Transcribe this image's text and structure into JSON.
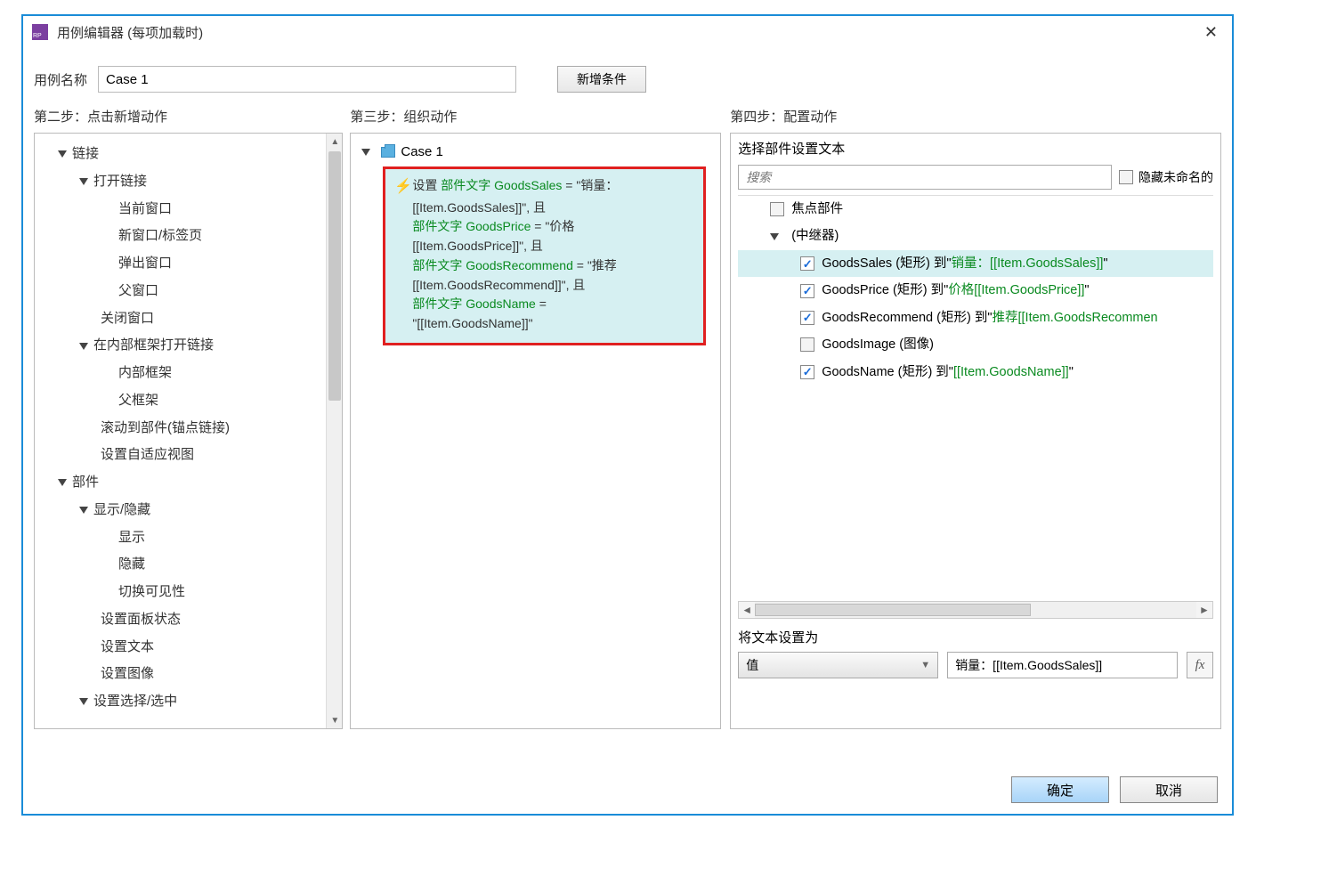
{
  "window": {
    "title": "用例编辑器 (每项加载时)"
  },
  "caseName": {
    "label": "用例名称",
    "value": "Case 1"
  },
  "newCondition": "新增条件",
  "steps": {
    "s2": "第二步：点击新增动作",
    "s3": "第三步：组织动作",
    "s4": "第四步：配置动作"
  },
  "actionTree": {
    "links": "链接",
    "openLink": "打开链接",
    "currentWindow": "当前窗口",
    "newWindowTab": "新窗口/标签页",
    "popupWindow": "弹出窗口",
    "parentWindow": "父窗口",
    "closeWindow": "关闭窗口",
    "openInFrame": "在内部框架打开链接",
    "innerFrame": "内部框架",
    "parentFrame": "父框架",
    "scrollToWidget": "滚动到部件(锚点链接)",
    "setAdaptive": "设置自适应视图",
    "widgets": "部件",
    "showHide": "显示/隐藏",
    "show": "显示",
    "hide": "隐藏",
    "toggleVis": "切换可见性",
    "setPanelState": "设置面板状态",
    "setText": "设置文本",
    "setImage": "设置图像",
    "setSelected": "设置选择/选中"
  },
  "case": {
    "name": "Case 1",
    "action": {
      "prefix": "设置 ",
      "g1a": "部件文字 GoodsSales",
      "g1b": " = \"销量：",
      "g1c": "[[Item.GoodsSales]]\"",
      "g1d": ", 且",
      "g2a": " 部件文字 GoodsPrice",
      "g2b": " = \"价格",
      "g2c": "[[Item.GoodsPrice]]\"",
      "g2d": ", 且",
      "g3a": " 部件文字 GoodsRecommend",
      "g3b": " = \"推荐",
      "g3c": "[[Item.GoodsRecommend]]\"",
      "g3d": ", 且",
      "g4a": " 部件文字 GoodsName",
      "g4b": " =",
      "g4c": "\"[[Item.GoodsName]]\""
    }
  },
  "config": {
    "title": "选择部件设置文本",
    "searchPlaceholder": "搜索",
    "hideUnnamed": "隐藏未命名的",
    "focusWidget": "焦点部件",
    "repeater": "(中继器)",
    "rows": {
      "r1a": "GoodsSales (矩形) 到\"",
      "r1b": "销量：[[Item.GoodsSales]]",
      "r1c": "\"",
      "r2a": "GoodsPrice (矩形) 到\"",
      "r2b": "价格[[Item.GoodsPrice]]",
      "r2c": "\"",
      "r3a": "GoodsRecommend (矩形) 到\"",
      "r3b": "推荐[[Item.GoodsRecommen",
      "r4a": "GoodsImage (图像)",
      "r5a": "GoodsName (矩形) 到\"",
      "r5b": "[[Item.GoodsName]]",
      "r5c": "\""
    },
    "setTextTo": "将文本设置为",
    "valueType": "值",
    "valueText": "销量：[[Item.GoodsSales]]",
    "fx": "fx"
  },
  "footer": {
    "ok": "确定",
    "cancel": "取消"
  }
}
